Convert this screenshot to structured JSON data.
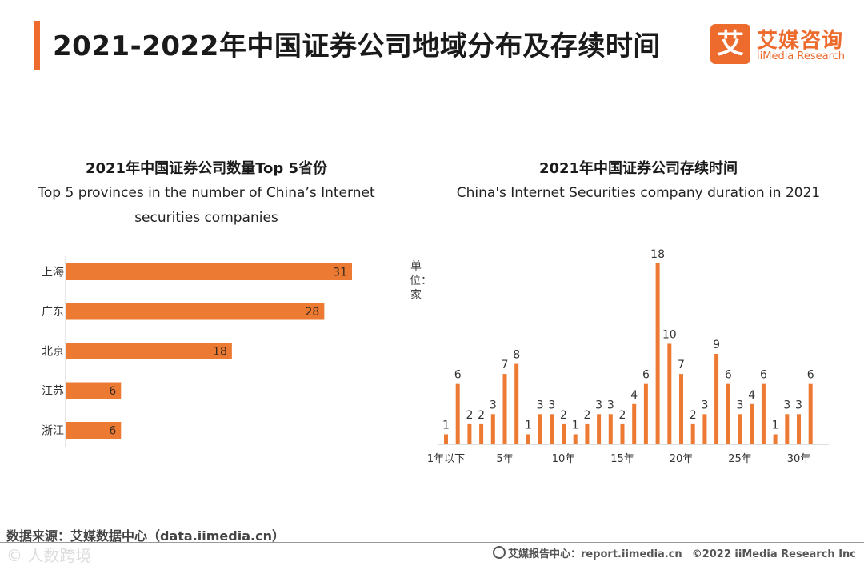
{
  "header": {
    "title": "2021-2022年中国证券公司地域分布及存续时间",
    "logo_mark": "艾",
    "logo_cn": "艾媒咨询",
    "logo_en": "iiMedia Research"
  },
  "chart_data": [
    {
      "type": "bar",
      "orientation": "horizontal",
      "title": "2021年中国证券公司数量Top 5省份",
      "subtitle_line1": "Top 5 provinces in the number of China’s Internet",
      "subtitle_line2": "securities companies",
      "categories": [
        "上海",
        "广东",
        "北京",
        "江苏",
        "浙江"
      ],
      "values": [
        31,
        28,
        18,
        6,
        6
      ],
      "xlim": [
        0,
        33
      ],
      "color": "#ec7a33"
    },
    {
      "type": "bar",
      "title": "2021年中国证券公司存续时间",
      "subtitle": "China's Internet Securities company duration in 2021",
      "ylabel": "单位：家",
      "x": [
        1,
        2,
        3,
        4,
        5,
        6,
        7,
        8,
        9,
        10,
        11,
        12,
        13,
        14,
        15,
        16,
        17,
        18,
        19,
        20,
        21,
        22,
        23,
        24,
        25,
        26,
        27,
        28,
        29,
        30,
        31,
        32
      ],
      "values": [
        1,
        6,
        2,
        2,
        3,
        7,
        8,
        1,
        3,
        3,
        2,
        1,
        2,
        3,
        3,
        2,
        4,
        6,
        18,
        10,
        7,
        2,
        3,
        9,
        6,
        3,
        4,
        6,
        1,
        3,
        3,
        6
      ],
      "tick_labels": [
        {
          "x": 1,
          "label": "1年以下"
        },
        {
          "x": 6,
          "label": "5年"
        },
        {
          "x": 11,
          "label": "10年"
        },
        {
          "x": 16,
          "label": "15年"
        },
        {
          "x": 21,
          "label": "20年"
        },
        {
          "x": 26,
          "label": "25年"
        },
        {
          "x": 31,
          "label": "30年"
        }
      ],
      "ylim": [
        0,
        18
      ],
      "color": "#ec7a33"
    }
  ],
  "footer": {
    "source": "数据来源：艾媒数据中心（data.iimedia.cn）",
    "watermark": "© 人数跨境",
    "report": "艾媒报告中心：report.iimedia.cn",
    "copyright": "©2022  iiMedia Research  Inc"
  }
}
